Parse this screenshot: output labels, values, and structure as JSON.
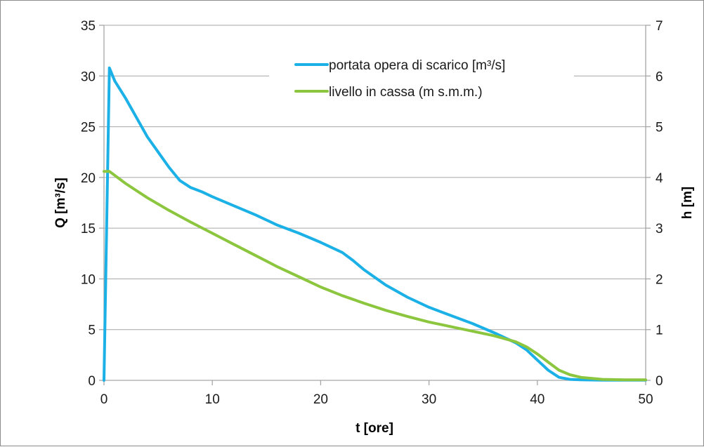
{
  "colors": {
    "grid": "#a6a6a6",
    "series_1": "#1cb1e6",
    "series_2": "#8cc63f"
  },
  "chart_data": {
    "type": "line",
    "title": "",
    "xlabel": "t [ore]",
    "ylabel": "Q [m³/s]",
    "y2label": "h [m]",
    "xlim": [
      0,
      50
    ],
    "ylim": [
      0,
      35
    ],
    "y2lim": [
      0,
      7
    ],
    "x_ticks": [
      "0",
      "10",
      "20",
      "30",
      "40",
      "50"
    ],
    "y_ticks": [
      "0",
      "5",
      "10",
      "15",
      "20",
      "25",
      "30",
      "35"
    ],
    "y2_ticks": [
      "0",
      "1",
      "2",
      "3",
      "4",
      "5",
      "6",
      "7"
    ],
    "grid": true,
    "legend_position": "top-right",
    "series": [
      {
        "name": "portata opera di scarico [m³/s]",
        "axis": "left",
        "color": "#1cb1e6",
        "x": [
          0,
          0.5,
          1,
          2,
          3,
          4,
          5,
          6,
          7,
          8,
          9,
          10,
          12,
          14,
          16,
          18,
          20,
          22,
          23,
          24,
          26,
          28,
          30,
          32,
          34,
          36,
          38,
          39,
          40,
          41,
          42,
          43,
          44,
          46,
          50
        ],
        "y": [
          0,
          30.8,
          29.5,
          27.8,
          25.9,
          24.0,
          22.5,
          21.0,
          19.7,
          19.0,
          18.6,
          18.1,
          17.2,
          16.3,
          15.3,
          14.5,
          13.6,
          12.6,
          11.8,
          10.9,
          9.4,
          8.2,
          7.2,
          6.4,
          5.6,
          4.7,
          3.7,
          3.0,
          2.0,
          1.0,
          0.3,
          0.1,
          0.05,
          0.02,
          0.02
        ]
      },
      {
        "name": "livello in cassa (m s.m.m.)",
        "axis": "right",
        "color": "#8cc63f",
        "x": [
          0,
          0.5,
          2,
          4,
          6,
          8,
          10,
          12,
          14,
          16,
          18,
          20,
          22,
          24,
          26,
          28,
          30,
          32,
          34,
          36,
          38,
          39,
          40,
          41,
          42,
          43,
          44,
          46,
          48,
          50
        ],
        "y": [
          4.12,
          4.12,
          3.88,
          3.6,
          3.35,
          3.12,
          2.9,
          2.68,
          2.46,
          2.24,
          2.04,
          1.84,
          1.67,
          1.52,
          1.38,
          1.26,
          1.15,
          1.06,
          0.97,
          0.88,
          0.76,
          0.66,
          0.52,
          0.36,
          0.2,
          0.11,
          0.06,
          0.02,
          0.01,
          0.01
        ]
      }
    ]
  }
}
